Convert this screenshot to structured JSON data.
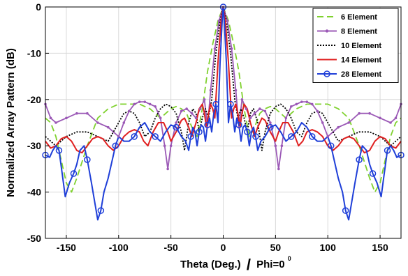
{
  "chart_data": {
    "type": "line",
    "xlabel": "Theta (Deg.)",
    "xlabel_suffix": "Phi=0",
    "xlabel_suffix_sup": "0",
    "ylabel": "Normalized Array Pattern (dB)",
    "xlim": [
      -170,
      170
    ],
    "ylim": [
      -50,
      0
    ],
    "x_ticks": [
      -150,
      -100,
      -50,
      0,
      50,
      100,
      150
    ],
    "y_ticks": [
      0,
      -10,
      -20,
      -30,
      -40,
      -50
    ],
    "grid": true,
    "legend_position": "top-right",
    "series": [
      {
        "name": "6 Element",
        "color": "#7fd12e",
        "dash": "dashed",
        "marker": "none",
        "points": [
          [
            0,
            0
          ],
          [
            5,
            -3
          ],
          [
            10,
            -8
          ],
          [
            15,
            -14
          ],
          [
            20,
            -22
          ],
          [
            25,
            -28
          ],
          [
            30,
            -26
          ],
          [
            35,
            -23
          ],
          [
            40,
            -22
          ],
          [
            45,
            -21.5
          ],
          [
            50,
            -22
          ],
          [
            55,
            -23
          ],
          [
            60,
            -24
          ],
          [
            65,
            -23
          ],
          [
            70,
            -22
          ],
          [
            80,
            -21
          ],
          [
            90,
            -21
          ],
          [
            100,
            -21
          ],
          [
            110,
            -22
          ],
          [
            120,
            -24
          ],
          [
            130,
            -30
          ],
          [
            140,
            -37
          ],
          [
            145,
            -40
          ],
          [
            150,
            -38
          ],
          [
            155,
            -33
          ],
          [
            160,
            -28
          ],
          [
            165,
            -25
          ],
          [
            170,
            -24
          ]
        ]
      },
      {
        "name": "8 Element",
        "color": "#9b59b6",
        "dash": "solid",
        "marker": "dot",
        "points": [
          [
            0,
            0
          ],
          [
            4,
            -3
          ],
          [
            8,
            -9
          ],
          [
            12,
            -18
          ],
          [
            15,
            -26
          ],
          [
            18,
            -20
          ],
          [
            22,
            -22
          ],
          [
            26,
            -24
          ],
          [
            30,
            -23
          ],
          [
            35,
            -22
          ],
          [
            40,
            -22.5
          ],
          [
            45,
            -25
          ],
          [
            50,
            -30
          ],
          [
            53,
            -35
          ],
          [
            56,
            -30
          ],
          [
            60,
            -24
          ],
          [
            65,
            -21.5
          ],
          [
            70,
            -21
          ],
          [
            75,
            -20.5
          ],
          [
            80,
            -20.5
          ],
          [
            85,
            -21
          ],
          [
            90,
            -22.5
          ],
          [
            95,
            -25
          ],
          [
            100,
            -28
          ],
          [
            110,
            -26
          ],
          [
            120,
            -25
          ],
          [
            130,
            -23
          ],
          [
            140,
            -23
          ],
          [
            150,
            -24
          ],
          [
            160,
            -25
          ],
          [
            165,
            -24
          ],
          [
            170,
            -21
          ]
        ]
      },
      {
        "name": "10 Element",
        "color": "#000000",
        "dash": "dotted",
        "marker": "none",
        "points": [
          [
            0,
            0
          ],
          [
            3,
            -3
          ],
          [
            7,
            -10
          ],
          [
            11,
            -20
          ],
          [
            14,
            -24
          ],
          [
            17,
            -22
          ],
          [
            20,
            -24
          ],
          [
            23,
            -27
          ],
          [
            26,
            -23
          ],
          [
            29,
            -22
          ],
          [
            33,
            -25
          ],
          [
            37,
            -31
          ],
          [
            40,
            -27
          ],
          [
            45,
            -23
          ],
          [
            50,
            -21.5
          ],
          [
            55,
            -21
          ],
          [
            60,
            -22
          ],
          [
            65,
            -24
          ],
          [
            70,
            -27
          ],
          [
            75,
            -28
          ],
          [
            80,
            -25
          ],
          [
            85,
            -23
          ],
          [
            90,
            -22.5
          ],
          [
            95,
            -23
          ],
          [
            100,
            -25
          ],
          [
            105,
            -27
          ],
          [
            110,
            -29
          ],
          [
            120,
            -28
          ],
          [
            130,
            -27
          ],
          [
            140,
            -27
          ],
          [
            150,
            -28
          ],
          [
            160,
            -30
          ],
          [
            165,
            -29
          ],
          [
            170,
            -28
          ]
        ]
      },
      {
        "name": "14 Element",
        "color": "#e02020",
        "dash": "solid",
        "marker": "none",
        "points": [
          [
            0,
            0
          ],
          [
            2,
            -3
          ],
          [
            5,
            -12
          ],
          [
            8,
            -24
          ],
          [
            10,
            -22
          ],
          [
            12,
            -21
          ],
          [
            14,
            -23
          ],
          [
            16,
            -26
          ],
          [
            18,
            -23
          ],
          [
            20,
            -21
          ],
          [
            23,
            -22
          ],
          [
            26,
            -25
          ],
          [
            30,
            -28
          ],
          [
            33,
            -26
          ],
          [
            37,
            -24
          ],
          [
            40,
            -24.5
          ],
          [
            45,
            -27
          ],
          [
            50,
            -29
          ],
          [
            53,
            -27
          ],
          [
            57,
            -25
          ],
          [
            62,
            -25
          ],
          [
            67,
            -27
          ],
          [
            72,
            -30
          ],
          [
            76,
            -29
          ],
          [
            80,
            -27
          ],
          [
            85,
            -26.5
          ],
          [
            90,
            -27
          ],
          [
            95,
            -28
          ],
          [
            100,
            -30
          ],
          [
            105,
            -31
          ],
          [
            110,
            -30
          ],
          [
            115,
            -28.5
          ],
          [
            120,
            -28
          ],
          [
            125,
            -28.5
          ],
          [
            130,
            -30
          ],
          [
            135,
            -31.5
          ],
          [
            140,
            -31
          ],
          [
            145,
            -29
          ],
          [
            150,
            -28
          ],
          [
            155,
            -28.5
          ],
          [
            160,
            -30
          ],
          [
            165,
            -30.5
          ],
          [
            170,
            -29
          ]
        ]
      },
      {
        "name": "28 Element",
        "color": "#1f3fd8",
        "dash": "solid",
        "marker": "circle",
        "points": [
          [
            0,
            0
          ],
          [
            1,
            -3
          ],
          [
            3,
            -12
          ],
          [
            5,
            -25
          ],
          [
            7,
            -21
          ],
          [
            9,
            -23
          ],
          [
            11,
            -27
          ],
          [
            13,
            -24
          ],
          [
            15,
            -25.5
          ],
          [
            17,
            -29
          ],
          [
            19,
            -26
          ],
          [
            21,
            -25.5
          ],
          [
            23,
            -27
          ],
          [
            25,
            -30
          ],
          [
            27,
            -27
          ],
          [
            29,
            -26
          ],
          [
            31,
            -28
          ],
          [
            33,
            -31
          ],
          [
            36,
            -29
          ],
          [
            40,
            -28
          ],
          [
            45,
            -26
          ],
          [
            50,
            -25.5
          ],
          [
            55,
            -27
          ],
          [
            60,
            -29
          ],
          [
            65,
            -28
          ],
          [
            70,
            -27
          ],
          [
            75,
            -25
          ],
          [
            80,
            -26
          ],
          [
            85,
            -28
          ],
          [
            90,
            -29
          ],
          [
            95,
            -29
          ],
          [
            100,
            -28
          ],
          [
            103,
            -30
          ],
          [
            106,
            -33
          ],
          [
            110,
            -37
          ],
          [
            114,
            -40
          ],
          [
            117,
            -44
          ],
          [
            120,
            -46
          ],
          [
            123,
            -42
          ],
          [
            126,
            -38
          ],
          [
            130,
            -33
          ],
          [
            133,
            -30
          ],
          [
            137,
            -31
          ],
          [
            140,
            -34
          ],
          [
            143,
            -36
          ],
          [
            147,
            -38
          ],
          [
            151,
            -41
          ],
          [
            154,
            -36
          ],
          [
            157,
            -31
          ],
          [
            160,
            -30
          ],
          [
            163,
            -31
          ],
          [
            166,
            -32.5
          ],
          [
            170,
            -32
          ]
        ]
      }
    ]
  }
}
